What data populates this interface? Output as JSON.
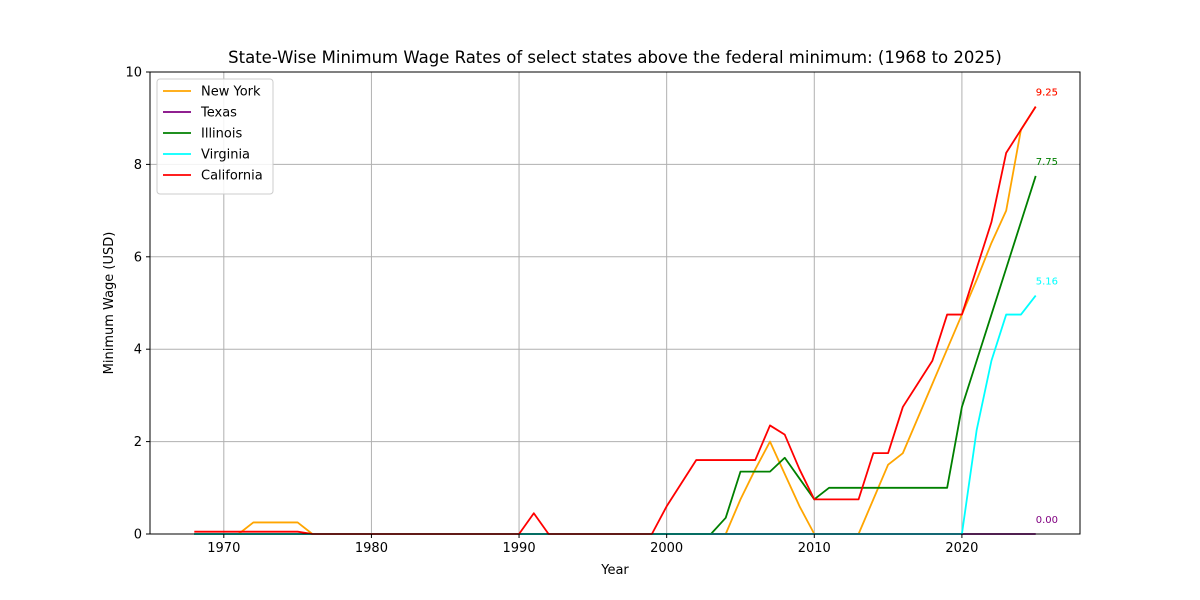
{
  "chart_data": {
    "type": "line",
    "title": "State-Wise Minimum Wage Rates of select states above the federal minimum: (1968 to 2025)",
    "xlabel": "Year",
    "ylabel": "Minimum Wage (USD)",
    "xlim": [
      1965,
      2028
    ],
    "ylim": [
      0,
      10
    ],
    "xticks": [
      1970,
      1980,
      1990,
      2000,
      2010,
      2020
    ],
    "yticks": [
      0,
      2,
      4,
      6,
      8,
      10
    ],
    "grid": true,
    "legend_position": "upper-left",
    "series": [
      {
        "name": "New York",
        "color": "#ffa500",
        "end_label": "9.25",
        "points": [
          [
            1968,
            0
          ],
          [
            1971,
            0
          ],
          [
            1972,
            0.25
          ],
          [
            1975,
            0.25
          ],
          [
            1976,
            0
          ],
          [
            2004,
            0
          ],
          [
            2005,
            0.75
          ],
          [
            2006,
            1.4
          ],
          [
            2007,
            2.0
          ],
          [
            2008,
            1.3
          ],
          [
            2009,
            0.6
          ],
          [
            2010,
            0
          ],
          [
            2013,
            0
          ],
          [
            2014,
            0.75
          ],
          [
            2015,
            1.5
          ],
          [
            2016,
            1.75
          ],
          [
            2017,
            2.5
          ],
          [
            2018,
            3.25
          ],
          [
            2019,
            4.0
          ],
          [
            2020,
            4.75
          ],
          [
            2021,
            5.5
          ],
          [
            2022,
            6.3
          ],
          [
            2023,
            7.0
          ],
          [
            2024,
            8.75
          ],
          [
            2025,
            9.25
          ]
        ]
      },
      {
        "name": "Texas",
        "color": "#800080",
        "end_label": "0.00",
        "points": [
          [
            1968,
            0
          ],
          [
            2025,
            0
          ]
        ]
      },
      {
        "name": "Illinois",
        "color": "#008000",
        "end_label": "7.75",
        "points": [
          [
            1968,
            0
          ],
          [
            2003,
            0
          ],
          [
            2004,
            0.35
          ],
          [
            2005,
            1.35
          ],
          [
            2007,
            1.35
          ],
          [
            2008,
            1.65
          ],
          [
            2009,
            1.2
          ],
          [
            2010,
            0.75
          ],
          [
            2011,
            1.0
          ],
          [
            2019,
            1.0
          ],
          [
            2020,
            2.75
          ],
          [
            2021,
            3.75
          ],
          [
            2022,
            4.75
          ],
          [
            2023,
            5.75
          ],
          [
            2024,
            6.75
          ],
          [
            2025,
            7.75
          ]
        ]
      },
      {
        "name": "Virginia",
        "color": "#00ffff",
        "end_label": "5.16",
        "points": [
          [
            1968,
            0
          ],
          [
            2020,
            0
          ],
          [
            2021,
            2.25
          ],
          [
            2022,
            3.75
          ],
          [
            2023,
            4.75
          ],
          [
            2024,
            4.75
          ],
          [
            2025,
            5.16
          ]
        ]
      },
      {
        "name": "California",
        "color": "#ff0000",
        "end_label": "9.25",
        "points": [
          [
            1968,
            0.05
          ],
          [
            1975,
            0.05
          ],
          [
            1976,
            0
          ],
          [
            1990,
            0
          ],
          [
            1991,
            0.45
          ],
          [
            1992,
            0
          ],
          [
            1999,
            0
          ],
          [
            2000,
            0.6
          ],
          [
            2002,
            1.6
          ],
          [
            2006,
            1.6
          ],
          [
            2007,
            2.35
          ],
          [
            2008,
            2.15
          ],
          [
            2009,
            1.4
          ],
          [
            2010,
            0.75
          ],
          [
            2013,
            0.75
          ],
          [
            2014,
            1.75
          ],
          [
            2015,
            1.75
          ],
          [
            2016,
            2.75
          ],
          [
            2017,
            3.25
          ],
          [
            2018,
            3.75
          ],
          [
            2019,
            4.75
          ],
          [
            2020,
            4.75
          ],
          [
            2021,
            5.75
          ],
          [
            2022,
            6.75
          ],
          [
            2023,
            8.25
          ],
          [
            2024,
            8.75
          ],
          [
            2025,
            9.25
          ]
        ]
      }
    ]
  }
}
